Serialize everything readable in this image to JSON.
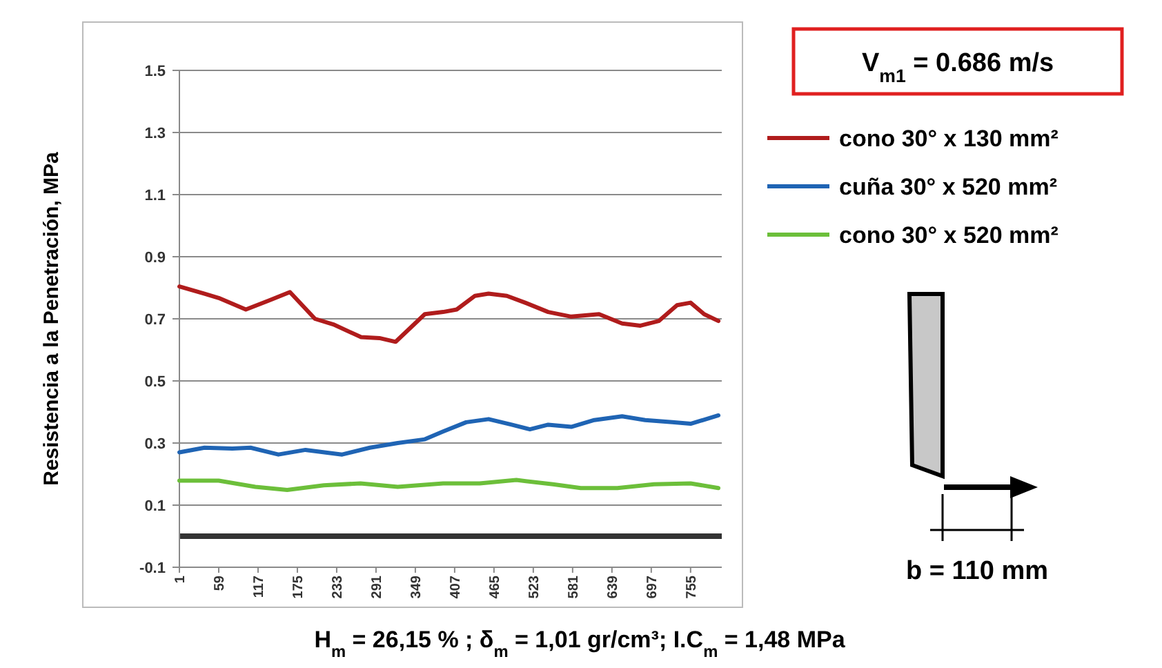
{
  "chart_data": {
    "type": "line",
    "ylabel": "Resistencia a la Penetración, MPa",
    "xlim": [
      1,
      801
    ],
    "xticks": [
      1,
      59,
      117,
      175,
      233,
      291,
      349,
      407,
      465,
      523,
      581,
      639,
      697,
      755
    ],
    "ylim": [
      -0.1,
      1.5
    ],
    "yticks": [
      -0.1,
      0.1,
      0.3,
      0.5,
      0.7,
      0.9,
      1.1,
      1.3,
      1.5
    ],
    "grid": "y",
    "legend": "right",
    "marker": "none",
    "line_style": "solid",
    "ref_lines": [
      {
        "axis": "y",
        "value": 0,
        "color": "#333333"
      }
    ],
    "annotations": [
      "V$_{m1}$ = 0.686 m/s",
      "b = 110 mm",
      "H$_{m}$ = 26,15 % ; δ$_{m}$ = 1,01 gr/cm³;  I.C$_{m}$ = 1,48 MPa"
    ],
    "series": [
      {
        "name": "cono 30° x 130 mm²",
        "color": "#b01c1c",
        "x": [
          1,
          38,
          59,
          99,
          133,
          164,
          201,
          228,
          269,
          296,
          320,
          363,
          390,
          410,
          437,
          457,
          484,
          511,
          545,
          579,
          620,
          654,
          681,
          708,
          735,
          755,
          775,
          796
        ],
        "values": [
          0.804,
          0.781,
          0.767,
          0.73,
          0.759,
          0.786,
          0.7,
          0.682,
          0.641,
          0.638,
          0.626,
          0.715,
          0.722,
          0.73,
          0.774,
          0.781,
          0.774,
          0.752,
          0.722,
          0.707,
          0.715,
          0.685,
          0.678,
          0.693,
          0.744,
          0.752,
          0.715,
          0.693
        ]
      },
      {
        "name": "cuña 30° x 520 mm²",
        "color": "#1f64b4",
        "x": [
          1,
          38,
          79,
          106,
          147,
          187,
          241,
          282,
          323,
          363,
          390,
          424,
          457,
          491,
          518,
          545,
          579,
          613,
          654,
          688,
          728,
          755,
          796
        ],
        "values": [
          0.27,
          0.285,
          0.282,
          0.285,
          0.263,
          0.278,
          0.263,
          0.285,
          0.3,
          0.312,
          0.337,
          0.367,
          0.377,
          0.359,
          0.344,
          0.359,
          0.352,
          0.374,
          0.386,
          0.374,
          0.367,
          0.362,
          0.389
        ]
      },
      {
        "name": "cono 30° x 520 mm²",
        "color": "#6cbf3a",
        "x": [
          1,
          59,
          113,
          160,
          214,
          268,
          323,
          390,
          444,
          498,
          552,
          593,
          647,
          701,
          755,
          796
        ],
        "values": [
          0.179,
          0.179,
          0.159,
          0.149,
          0.164,
          0.17,
          0.159,
          0.17,
          0.17,
          0.181,
          0.167,
          0.155,
          0.155,
          0.167,
          0.17,
          0.155
        ]
      }
    ]
  }
}
